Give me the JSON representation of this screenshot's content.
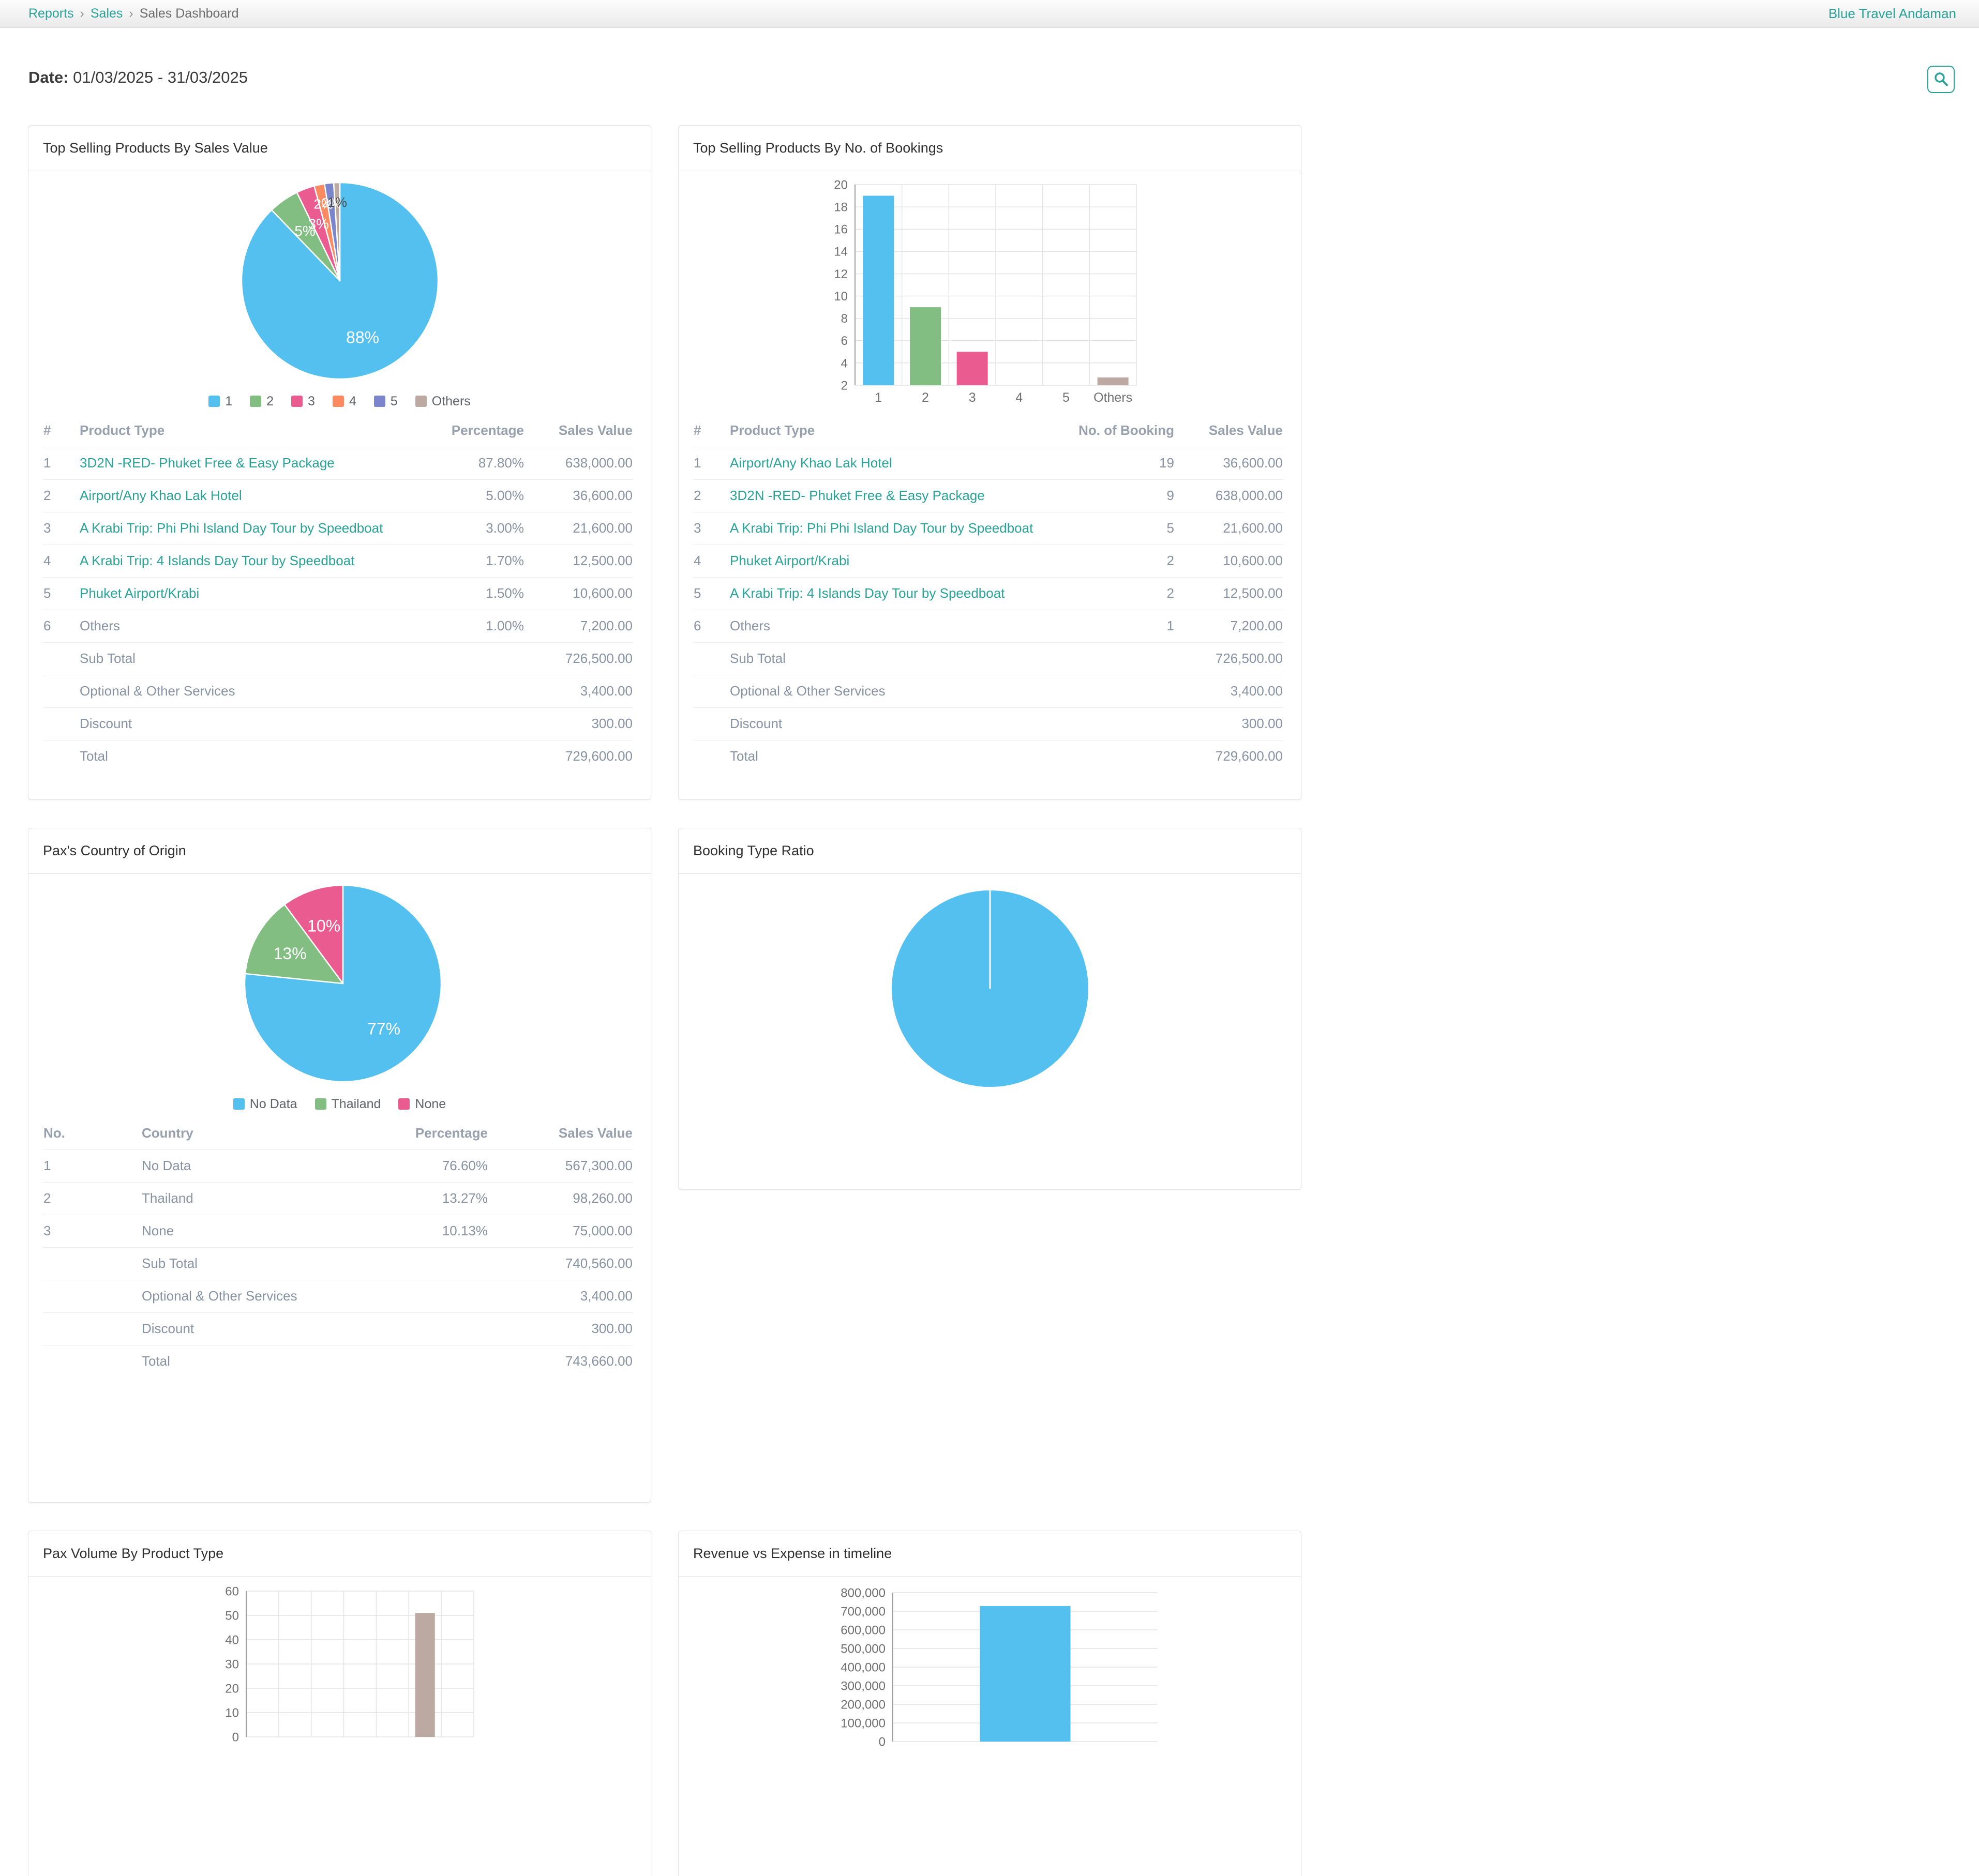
{
  "theme": {
    "accent": "#29A298"
  },
  "page": {
    "breadcrumb": [
      "Reports",
      "Sales",
      "Sales Dashboard"
    ],
    "breadcrumb_sep": "›",
    "brand": "Blue Travel Andaman",
    "date_label": "Date:",
    "date_value": "01/03/2025 - 31/03/2025"
  },
  "cards": [
    {
      "title": "Top Selling Products By Sales Value",
      "chart_data": {
        "type": "pie",
        "labels": [
          "1",
          "2",
          "3",
          "4",
          "5",
          "Others"
        ],
        "values": [
          87.8,
          5,
          3,
          1.7,
          1.5,
          1
        ],
        "colors": [
          "#53C0F0",
          "#82BE82",
          "#EA5C8F",
          "#FB8A61",
          "#7B85CC",
          "#BCA9A1"
        ],
        "legend_position": "bottom"
      },
      "table": {
        "headers": [
          "#",
          "Product Type",
          "Percentage",
          "Sales Value"
        ],
        "rows": [
          {
            "no": "1",
            "label": "3D2N -RED- Phuket Free & Easy Package",
            "link": true,
            "mid": "87.80%",
            "right": "638,000.00"
          },
          {
            "no": "2",
            "label": "Airport/Any Khao Lak Hotel",
            "link": true,
            "mid": "5.00%",
            "right": "36,600.00"
          },
          {
            "no": "3",
            "label": "A Krabi Trip: Phi Phi Island Day Tour by Speedboat",
            "link": true,
            "mid": "3.00%",
            "right": "21,600.00"
          },
          {
            "no": "4",
            "label": "A Krabi Trip: 4 Islands Day Tour by Speedboat",
            "link": true,
            "mid": "1.70%",
            "right": "12,500.00"
          },
          {
            "no": "5",
            "label": "Phuket Airport/Krabi",
            "link": true,
            "mid": "1.50%",
            "right": "10,600.00"
          },
          {
            "no": "6",
            "label": "Others",
            "link": false,
            "mid": "1.00%",
            "right": "7,200.00"
          },
          {
            "no": "",
            "label": "Sub Total",
            "link": false,
            "mid": "",
            "right": "726,500.00"
          },
          {
            "no": "",
            "label": "Optional & Other Services",
            "link": false,
            "mid": "",
            "right": "3,400.00"
          },
          {
            "no": "",
            "label": "Discount",
            "link": false,
            "mid": "",
            "right": "300.00"
          },
          {
            "no": "",
            "label": "Total",
            "link": false,
            "mid": "",
            "right": "729,600.00"
          }
        ]
      }
    },
    {
      "title": "Top Selling Products By No. of Bookings",
      "chart_data": {
        "type": "bar",
        "categories": [
          "1",
          "2",
          "3",
          "4",
          "5",
          "Others"
        ],
        "values": [
          19,
          9,
          5,
          2,
          2,
          1
        ],
        "display_values": [
          19,
          9,
          5,
          2,
          2,
          2.7
        ],
        "ymin": 2,
        "ymax": 20,
        "ytick": 2,
        "colors": [
          "#53C0F0",
          "#82BE82",
          "#EA5C8F",
          "#FB8A61",
          "#7B85CC",
          "#BCA9A1"
        ]
      },
      "table": {
        "headers": [
          "#",
          "Product Type",
          "No. of Booking",
          "Sales Value"
        ],
        "rows": [
          {
            "no": "1",
            "label": "Airport/Any Khao Lak Hotel",
            "link": true,
            "mid": "19",
            "right": "36,600.00"
          },
          {
            "no": "2",
            "label": "3D2N -RED- Phuket Free & Easy Package",
            "link": true,
            "mid": "9",
            "right": "638,000.00"
          },
          {
            "no": "3",
            "label": "A Krabi Trip: Phi Phi Island Day Tour by Speedboat",
            "link": true,
            "mid": "5",
            "right": "21,600.00"
          },
          {
            "no": "4",
            "label": "Phuket Airport/Krabi",
            "link": true,
            "mid": "2",
            "right": "10,600.00"
          },
          {
            "no": "5",
            "label": "A Krabi Trip: 4 Islands Day Tour by Speedboat",
            "link": true,
            "mid": "2",
            "right": "12,500.00"
          },
          {
            "no": "6",
            "label": "Others",
            "link": false,
            "mid": "1",
            "right": "7,200.00"
          },
          {
            "no": "",
            "label": "Sub Total",
            "link": false,
            "mid": "",
            "right": "726,500.00"
          },
          {
            "no": "",
            "label": "Optional & Other Services",
            "link": false,
            "mid": "",
            "right": "3,400.00"
          },
          {
            "no": "",
            "label": "Discount",
            "link": false,
            "mid": "",
            "right": "300.00"
          },
          {
            "no": "",
            "label": "Total",
            "link": false,
            "mid": "",
            "right": "729,600.00"
          }
        ]
      }
    },
    {
      "title": "Pax's Country of Origin",
      "chart_data": {
        "type": "pie",
        "labels": [
          "No Data",
          "Thailand",
          "None"
        ],
        "values": [
          76.6,
          13.27,
          10.13
        ],
        "colors": [
          "#53C0F0",
          "#82BE82",
          "#EA5C8F"
        ],
        "legend_position": "bottom"
      },
      "table": {
        "headers": [
          "No.",
          "Country",
          "Percentage",
          "Sales Value"
        ],
        "rows": [
          {
            "no": "1",
            "label": "No Data",
            "link": false,
            "mid": "76.60%",
            "right": "567,300.00"
          },
          {
            "no": "2",
            "label": "Thailand",
            "link": false,
            "mid": "13.27%",
            "right": "98,260.00"
          },
          {
            "no": "3",
            "label": "None",
            "link": false,
            "mid": "10.13%",
            "right": "75,000.00"
          },
          {
            "no": "",
            "label": "Sub Total",
            "link": false,
            "mid": "",
            "right": "740,560.00"
          },
          {
            "no": "",
            "label": "Optional & Other Services",
            "link": false,
            "mid": "",
            "right": "3,400.00"
          },
          {
            "no": "",
            "label": "Discount",
            "link": false,
            "mid": "",
            "right": "300.00"
          },
          {
            "no": "",
            "label": "Total",
            "link": false,
            "mid": "",
            "right": "743,660.00"
          }
        ]
      }
    },
    {
      "title": "Booking Type Ratio",
      "chart_data": {
        "type": "pie",
        "labels": [
          ""
        ],
        "values": [
          100
        ],
        "colors": [
          "#53C0F0"
        ],
        "show_labels": false
      }
    },
    {
      "title": "Pax Volume By Product Type",
      "chart_data": {
        "type": "bar",
        "categories": [
          "",
          "",
          "",
          "",
          "",
          "",
          ""
        ],
        "values": [
          null,
          null,
          null,
          null,
          null,
          51,
          null
        ],
        "ymin": 0,
        "ymax": 60,
        "ytick": 10,
        "colors": [
          "#BCA9A1"
        ]
      }
    },
    {
      "title": "Revenue vs Expense in timeline",
      "chart_data": {
        "type": "bar",
        "categories": [
          ""
        ],
        "values": [
          728000
        ],
        "ymin": 0,
        "ymax": 800000,
        "ytick": 100000,
        "tick_format": "comma",
        "colors": [
          "#53C0F0"
        ]
      }
    }
  ]
}
